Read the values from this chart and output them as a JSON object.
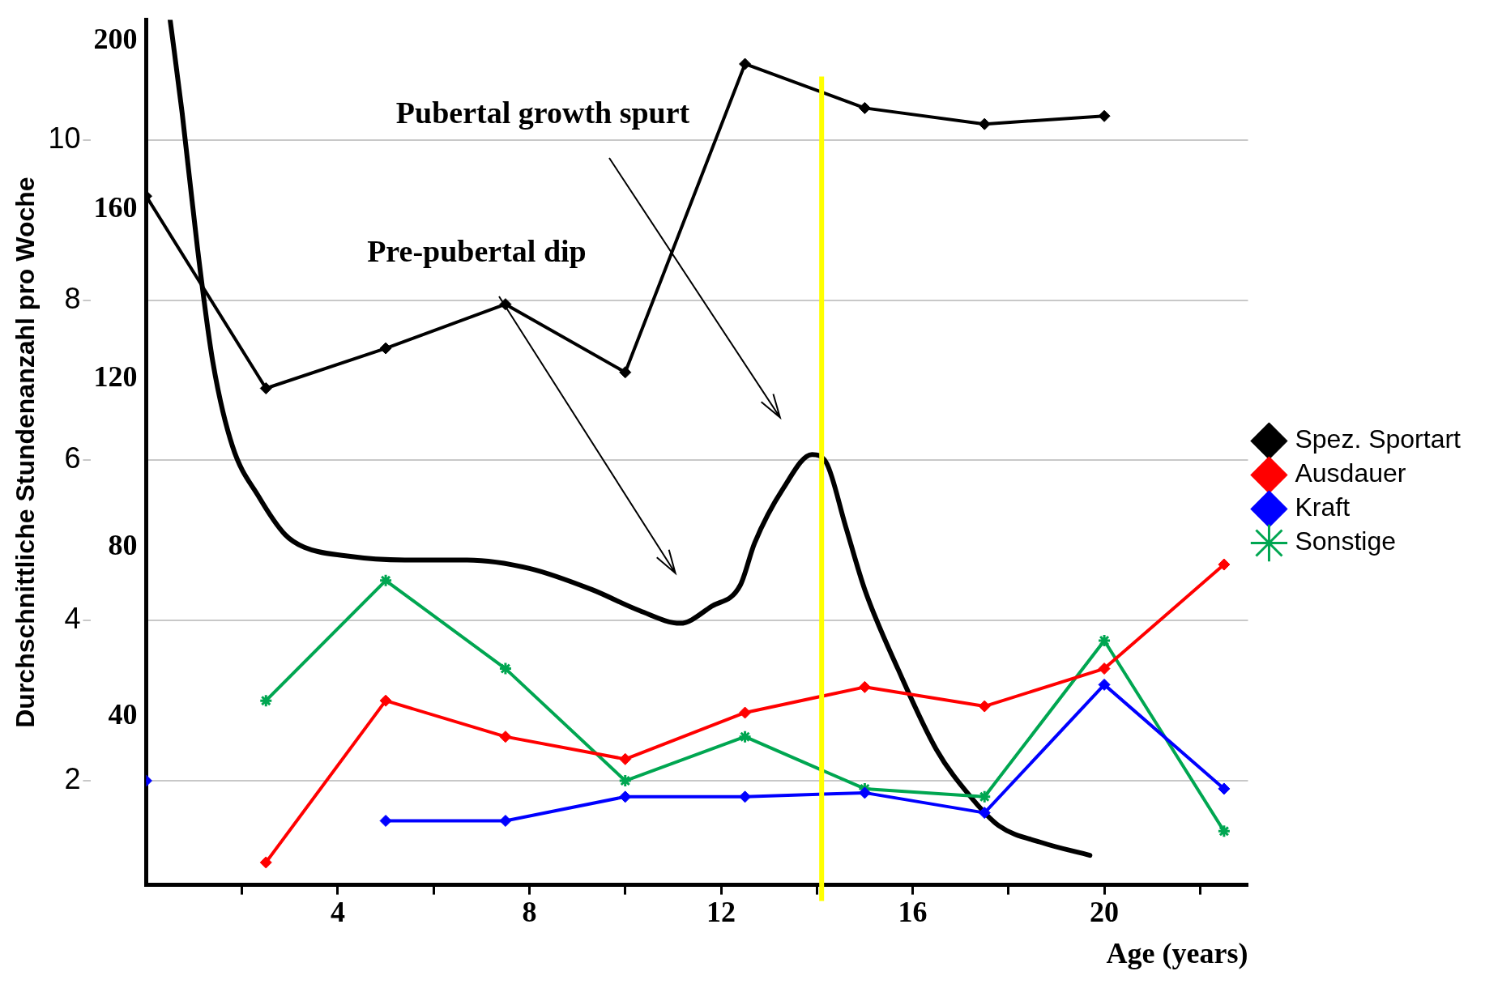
{
  "chart_data": {
    "type": "line",
    "xlabel": "Age (years)",
    "ylabel": "Durchschnittliche Stundenanzahl pro Woche",
    "x": [
      0,
      2.5,
      5,
      7.5,
      10,
      12.5,
      15,
      17.5,
      20,
      22.5
    ],
    "xlim": [
      0,
      23
    ],
    "xticks": [
      {
        "value": 2,
        "label": null
      },
      4,
      {
        "value": 6,
        "label": null
      },
      8,
      {
        "value": 10,
        "label": null
      },
      12,
      {
        "value": 14,
        "label": null
      },
      16,
      {
        "value": 18,
        "label": null
      },
      20,
      {
        "value": 22,
        "label": null
      }
    ],
    "ylim": [
      0.7,
      11.5
    ],
    "yticks": [
      2,
      4,
      6,
      8,
      10
    ],
    "y2lim": [
      0,
      205
    ],
    "y2ticks": [
      40,
      80,
      120,
      160,
      200
    ],
    "grid": "y",
    "legend": "right",
    "marker": "diamond",
    "series": [
      {
        "name": "Spez. Sportart",
        "color": "#000000",
        "values": [
          9.3,
          6.9,
          7.4,
          7.95,
          7.1,
          10.95,
          10.4,
          10.2,
          10.3,
          null
        ]
      },
      {
        "name": "Ausdauer",
        "color": "#ff0000",
        "values": [
          null,
          0.98,
          3.0,
          2.55,
          2.27,
          2.85,
          3.17,
          2.93,
          3.4,
          4.7
        ]
      },
      {
        "name": "Kraft",
        "color": "#0000ff",
        "values": [
          2.0,
          null,
          1.5,
          1.5,
          1.8,
          1.8,
          1.85,
          1.6,
          3.2,
          1.9
        ]
      },
      {
        "name": "Sonstige",
        "color": "#00a651",
        "marker": "cross",
        "values": [
          null,
          3.0,
          4.5,
          3.4,
          2.0,
          2.55,
          1.9,
          1.8,
          3.75,
          1.37
        ]
      },
      {
        "color": "#000000",
        "axis": "y2",
        "marker": "none",
        "x": [
          0.5,
          0.75,
          1.07,
          1.39,
          1.8,
          2.35,
          2.9,
          3.3,
          4.16,
          5.4,
          6.7,
          8,
          9.3,
          10.3,
          11.15,
          11.8,
          12.4,
          12.7,
          13.3,
          13.9,
          14.2,
          14.6,
          15,
          15.7,
          16.5,
          17.2,
          17.8,
          18.7,
          19.7
        ],
        "values": [
          205,
          183,
          151,
          124,
          104,
          92,
          83,
          80,
          78,
          77,
          77,
          75,
          70,
          65,
          62,
          66,
          71,
          81,
          94,
          102,
          100,
          85,
          70,
          51,
          32,
          21,
          14,
          10,
          7
        ]
      }
    ],
    "ref_lines": [
      {
        "axis": "x",
        "value": 14.1,
        "color": "#ffff00"
      }
    ],
    "annotations": [
      "Pre-pubertal dip",
      "Pubertal growth spurt"
    ]
  }
}
